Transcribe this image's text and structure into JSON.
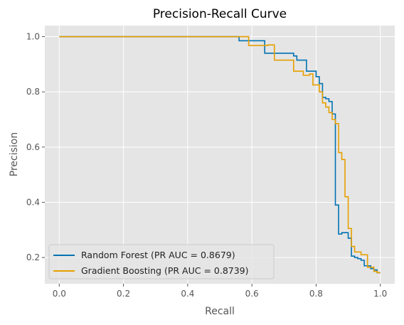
{
  "chart_data": {
    "type": "line",
    "title": "Precision-Recall Curve",
    "xlabel": "Recall",
    "ylabel": "Precision",
    "xlim": [
      -0.045,
      1.045
    ],
    "ylim": [
      0.105,
      1.04
    ],
    "x_ticks": [
      0.0,
      0.2,
      0.4,
      0.6,
      0.8,
      1.0
    ],
    "x_tick_labels": [
      "0.0",
      "0.2",
      "0.4",
      "0.6",
      "0.8",
      "1.0"
    ],
    "y_ticks": [
      0.2,
      0.4,
      0.6,
      0.8,
      1.0
    ],
    "y_tick_labels": [
      "0.2",
      "0.4",
      "0.6",
      "0.8",
      "1.0"
    ],
    "grid": true,
    "legend_position": "lower-left",
    "background_color": "#e5e5e5",
    "grid_color": "#ffffff",
    "series": [
      {
        "name": "Random Forest (PR AUC = 0.8679)",
        "color": "#0072b2",
        "x": [
          0.0,
          0.56,
          0.56,
          0.64,
          0.64,
          0.73,
          0.73,
          0.74,
          0.74,
          0.77,
          0.77,
          0.8,
          0.8,
          0.81,
          0.81,
          0.82,
          0.82,
          0.83,
          0.83,
          0.84,
          0.84,
          0.85,
          0.85,
          0.86,
          0.86,
          0.87,
          0.87,
          0.88,
          0.88,
          0.9,
          0.9,
          0.91,
          0.91,
          0.92,
          0.92,
          0.93,
          0.93,
          0.94,
          0.94,
          0.95,
          0.95,
          0.97,
          0.97,
          0.98,
          0.98,
          0.99,
          0.99,
          1.0
        ],
        "y": [
          1.0,
          1.0,
          0.985,
          0.985,
          0.94,
          0.94,
          0.93,
          0.93,
          0.915,
          0.915,
          0.875,
          0.875,
          0.855,
          0.855,
          0.83,
          0.83,
          0.78,
          0.78,
          0.775,
          0.775,
          0.765,
          0.765,
          0.72,
          0.72,
          0.39,
          0.39,
          0.285,
          0.285,
          0.29,
          0.29,
          0.27,
          0.27,
          0.205,
          0.205,
          0.2,
          0.2,
          0.196,
          0.196,
          0.19,
          0.19,
          0.17,
          0.17,
          0.16,
          0.16,
          0.155,
          0.155,
          0.145,
          0.145
        ]
      },
      {
        "name": "Gradient Boosting (PR AUC = 0.8739)",
        "color": "#e69f00",
        "x": [
          0.0,
          0.59,
          0.59,
          0.65,
          0.65,
          0.67,
          0.67,
          0.73,
          0.73,
          0.76,
          0.76,
          0.78,
          0.78,
          0.79,
          0.79,
          0.81,
          0.81,
          0.82,
          0.82,
          0.83,
          0.83,
          0.84,
          0.84,
          0.85,
          0.85,
          0.86,
          0.86,
          0.87,
          0.87,
          0.88,
          0.88,
          0.89,
          0.89,
          0.9,
          0.9,
          0.91,
          0.91,
          0.92,
          0.92,
          0.94,
          0.94,
          0.96,
          0.96,
          0.98,
          0.98,
          0.99,
          0.99,
          1.0
        ],
        "y": [
          1.0,
          1.0,
          0.968,
          0.968,
          0.97,
          0.97,
          0.915,
          0.915,
          0.875,
          0.875,
          0.86,
          0.86,
          0.865,
          0.865,
          0.825,
          0.825,
          0.8,
          0.8,
          0.76,
          0.76,
          0.745,
          0.745,
          0.725,
          0.725,
          0.7,
          0.7,
          0.685,
          0.685,
          0.58,
          0.58,
          0.555,
          0.555,
          0.42,
          0.42,
          0.305,
          0.305,
          0.24,
          0.24,
          0.22,
          0.22,
          0.21,
          0.21,
          0.165,
          0.165,
          0.15,
          0.15,
          0.145,
          0.145
        ]
      }
    ]
  }
}
